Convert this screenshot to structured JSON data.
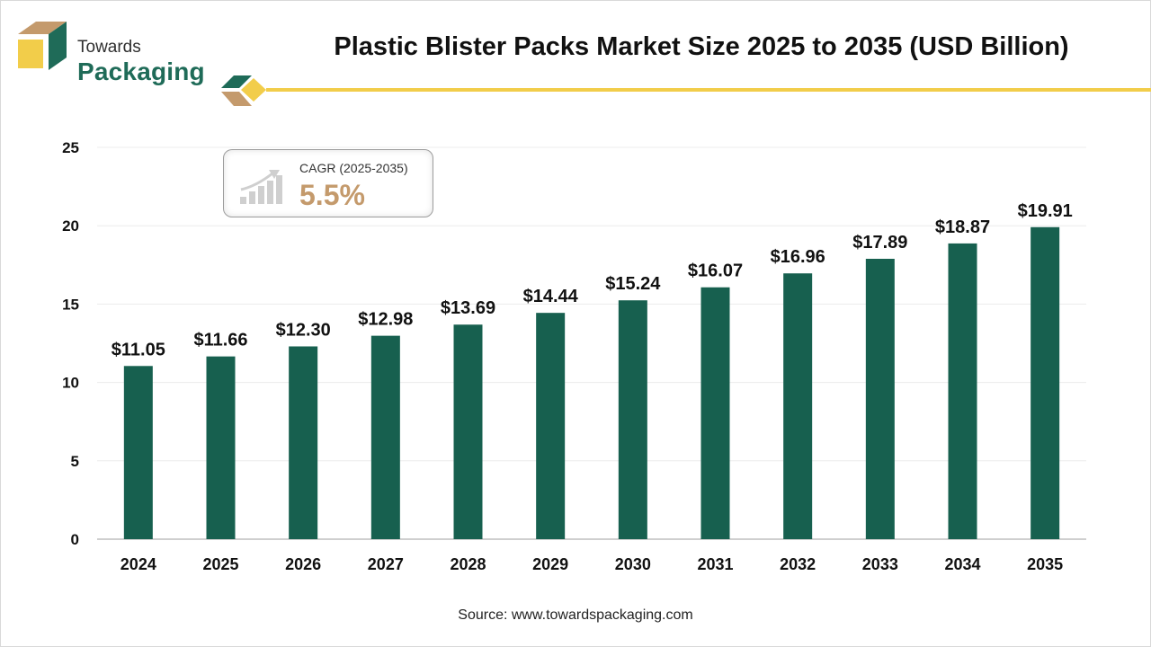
{
  "brand": {
    "line1": "Towards",
    "line2": "Packaging"
  },
  "colors": {
    "bar": "#17604f",
    "accent": "#f2cd4a",
    "brand_green": "#1f6b58",
    "cagr": "#c49a6c"
  },
  "cagr": {
    "label": "CAGR (2025-2035)",
    "value": "5.5%",
    "icon": "growth-chart-icon"
  },
  "source": "Source: www.towardspackaging.com",
  "chart_data": {
    "type": "bar",
    "title": "Plastic Blister Packs Market Size 2025 to 2035 (USD Billion)",
    "xlabel": "",
    "ylabel": "",
    "categories": [
      "2024",
      "2025",
      "2026",
      "2027",
      "2028",
      "2029",
      "2030",
      "2031",
      "2032",
      "2033",
      "2034",
      "2035"
    ],
    "values": [
      11.05,
      11.66,
      12.3,
      12.98,
      13.69,
      14.44,
      15.24,
      16.07,
      16.96,
      17.89,
      18.87,
      19.91
    ],
    "value_labels": [
      "$11.05",
      "$11.66",
      "$12.30",
      "$12.98",
      "$13.69",
      "$14.44",
      "$15.24",
      "$16.07",
      "$16.96",
      "$17.89",
      "$18.87",
      "$19.91"
    ],
    "yticks": [
      0,
      5,
      10,
      15,
      20,
      25
    ],
    "ylim": [
      0,
      25
    ],
    "grid": true,
    "legend": "none"
  }
}
